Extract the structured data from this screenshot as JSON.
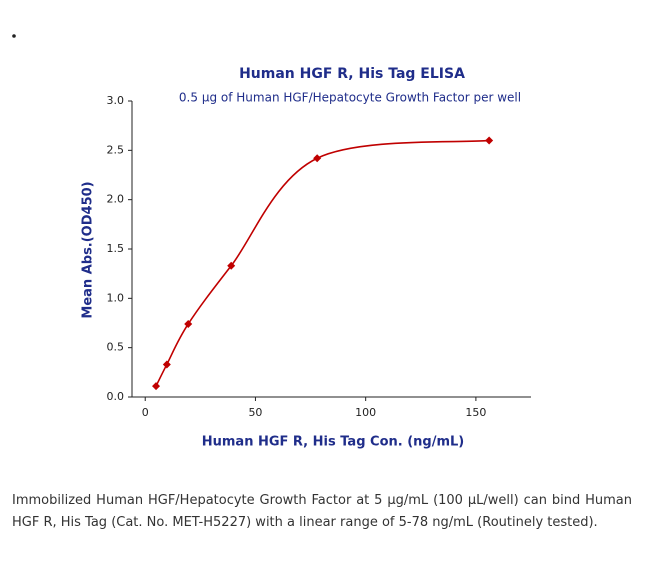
{
  "chart_data": {
    "type": "scatter",
    "title": "Human HGF R, His Tag ELISA",
    "subtitle": "0.5 μg of Human HGF/Hepatocyte Growth Factor per well",
    "x_label": "Human HGF R, His Tag Con. (ng/mL)",
    "y_label": "Mean Abs.(OD450)",
    "x": [
      4.9,
      9.8,
      19.5,
      39,
      78,
      156
    ],
    "values": [
      0.11,
      0.33,
      0.74,
      1.33,
      2.42,
      2.6
    ],
    "color": "#c00000",
    "xlim": [
      -6,
      175
    ],
    "xticks": [
      0,
      50,
      100,
      150
    ],
    "ylim": [
      0,
      3
    ],
    "yticks": [
      {
        "value": 0,
        "label": "0.0"
      },
      {
        "value": 0.5,
        "label": "0.5"
      },
      {
        "value": 1,
        "label": "1.0"
      },
      {
        "value": 1.5,
        "label": "1.5"
      },
      {
        "value": 2,
        "label": "2.0"
      },
      {
        "value": 2.5,
        "label": "2.5"
      },
      {
        "value": 3,
        "label": "3.0"
      }
    ]
  },
  "caption": "Immobilized Human HGF/Hepatocyte Growth Factor at 5 μg/mL (100 μL/well) can bind Human HGF R, His Tag (Cat. No. MET-H5227) with a linear range of 5-78 ng/mL (Routinely tested)."
}
